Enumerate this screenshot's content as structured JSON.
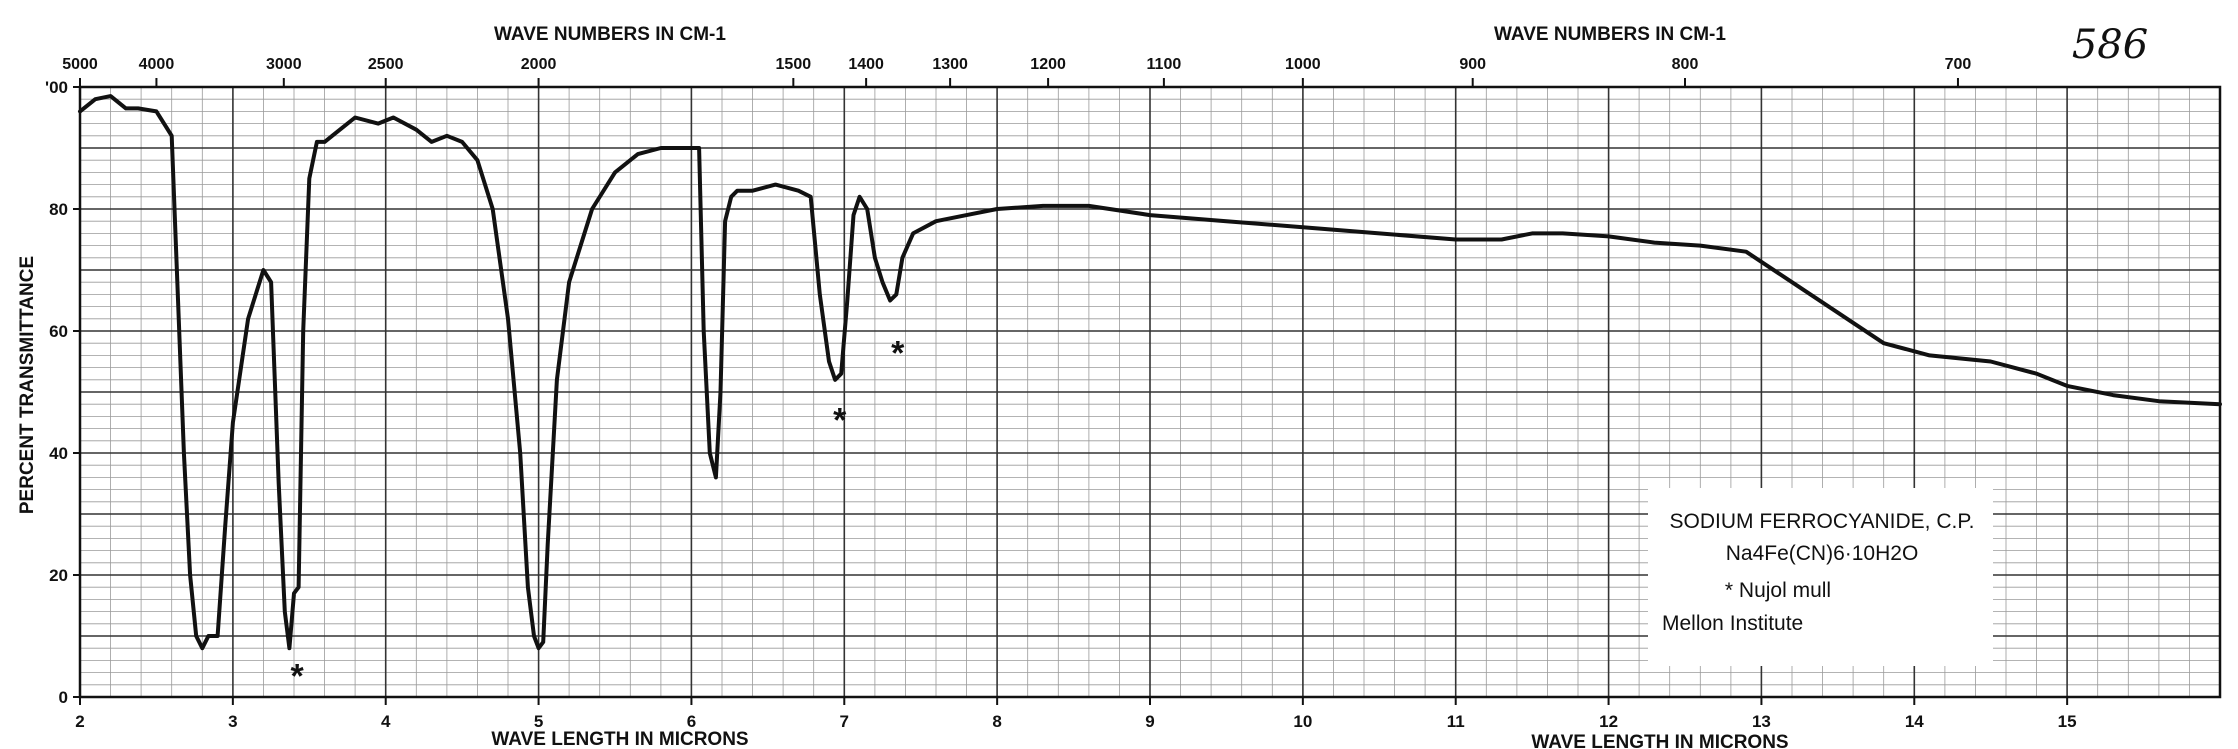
{
  "chart_data": {
    "type": "line",
    "page_number": "586",
    "top_axis_title_left": "WAVE NUMBERS IN CM-1",
    "top_axis_title_right": "WAVE NUMBERS IN CM-1",
    "bottom_axis_title_left": "WAVE LENGTH IN MICRONS",
    "bottom_axis_title_right": "WAVE LENGTH IN MICRONS",
    "ylabel": "PERCENT TRANSMITTANCE",
    "xlim": [
      2,
      16
    ],
    "ylim": [
      0,
      100
    ],
    "x_ticks": [
      {
        "v": 2,
        "t": "2"
      },
      {
        "v": 3,
        "t": "3"
      },
      {
        "v": 4,
        "t": "4"
      },
      {
        "v": 5,
        "t": "5"
      },
      {
        "v": 6,
        "t": "6"
      },
      {
        "v": 7,
        "t": "7"
      },
      {
        "v": 8,
        "t": "8"
      },
      {
        "v": 9,
        "t": "9"
      },
      {
        "v": 10,
        "t": "10"
      },
      {
        "v": 11,
        "t": "11"
      },
      {
        "v": 12,
        "t": "12"
      },
      {
        "v": 13,
        "t": "13"
      },
      {
        "v": 14,
        "t": "14"
      },
      {
        "v": 15,
        "t": "15"
      }
    ],
    "y_ticks": [
      {
        "v": 0,
        "t": "0"
      },
      {
        "v": 20,
        "t": "20"
      },
      {
        "v": 40,
        "t": "40"
      },
      {
        "v": 60,
        "t": "60"
      },
      {
        "v": 80,
        "t": "80"
      },
      {
        "v": 100,
        "t": "'00"
      }
    ],
    "top_ticks": [
      {
        "v": 5000,
        "t": "5000"
      },
      {
        "v": 4000,
        "t": "4000"
      },
      {
        "v": 3000,
        "t": "3000"
      },
      {
        "v": 2500,
        "t": "2500"
      },
      {
        "v": 2000,
        "t": "2000"
      },
      {
        "v": 1500,
        "t": "1500"
      },
      {
        "v": 1400,
        "t": "1400"
      },
      {
        "v": 1300,
        "t": "1300"
      },
      {
        "v": 1200,
        "t": "1200"
      },
      {
        "v": 1100,
        "t": "1100"
      },
      {
        "v": 1000,
        "t": "1000"
      },
      {
        "v": 900,
        "t": "900"
      },
      {
        "v": 800,
        "t": "800"
      },
      {
        "v": 700,
        "t": "700"
      }
    ],
    "series": [
      {
        "x": [
          2.0,
          2.1,
          2.2,
          2.3,
          2.38,
          2.5,
          2.6,
          2.68,
          2.72,
          2.76,
          2.8,
          2.84,
          2.9,
          2.95,
          3.0,
          3.1,
          3.2,
          3.25,
          3.3,
          3.34,
          3.37,
          3.4,
          3.43,
          3.46,
          3.5,
          3.55,
          3.6,
          3.65,
          3.8,
          3.95,
          4.05,
          4.2,
          4.3,
          4.4,
          4.5,
          4.6,
          4.7,
          4.8,
          4.88,
          4.93,
          4.97,
          5.0,
          5.03,
          5.06,
          5.12,
          5.2,
          5.35,
          5.5,
          5.65,
          5.8,
          5.95,
          6.05,
          6.08,
          6.12,
          6.16,
          6.19,
          6.22,
          6.26,
          6.3,
          6.4,
          6.55,
          6.7,
          6.78,
          6.84,
          6.9,
          6.94,
          6.98,
          7.02,
          7.06,
          7.1,
          7.15,
          7.2,
          7.25,
          7.3,
          7.34,
          7.38,
          7.45,
          7.6,
          7.8,
          8.0,
          8.3,
          8.6,
          9.0,
          9.5,
          10.0,
          10.5,
          11.0,
          11.3,
          11.5,
          11.7,
          12.0,
          12.3,
          12.6,
          12.9,
          13.2,
          13.5,
          13.8,
          14.1,
          14.5,
          14.8,
          15.0,
          15.3,
          15.6,
          16.0
        ],
        "y": [
          96,
          98,
          98.5,
          96.5,
          96.5,
          96,
          92,
          40,
          20,
          10,
          8,
          10,
          10,
          28,
          45,
          62,
          70,
          68,
          35,
          14,
          8,
          17,
          18,
          60,
          85,
          91,
          91,
          92,
          95,
          94,
          95,
          93,
          91,
          92,
          91,
          88,
          80,
          62,
          40,
          18,
          10,
          8,
          9,
          25,
          52,
          68,
          80,
          86,
          89,
          90,
          90,
          90,
          60,
          40,
          36,
          50,
          78,
          82,
          83,
          83,
          84,
          83,
          82,
          66,
          55,
          52,
          53,
          65,
          79,
          82,
          80,
          72,
          68,
          65,
          66,
          72,
          76,
          78,
          79,
          80,
          80.5,
          80.5,
          79,
          78,
          77,
          76,
          75,
          75,
          76,
          76,
          75.5,
          74.5,
          74,
          73,
          68,
          63,
          58,
          56,
          55,
          53,
          51,
          49.5,
          48.5,
          48
        ]
      }
    ],
    "markers": [
      {
        "x": 3.42,
        "y": 3.5,
        "t": "*"
      },
      {
        "x": 6.97,
        "y": 45.5,
        "t": "*"
      },
      {
        "x": 7.35,
        "y": 56.5,
        "t": "*"
      }
    ],
    "legend_lines": [
      "SODIUM FERROCYANIDE, C.P.",
      "Na4Fe(CN)6·10H2O",
      "* Nujol mull",
      "Mellon Institute"
    ]
  }
}
